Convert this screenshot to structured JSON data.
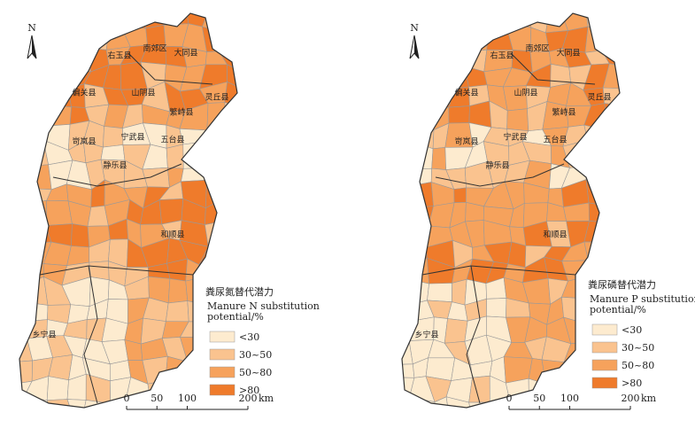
{
  "maps": [
    {
      "north": "N",
      "legend_title": "粪尿氮替代潜力",
      "legend_subtitle_1": "Manure N substitution",
      "legend_subtitle_2": "potential/%",
      "classes": [
        {
          "label": "<30",
          "color": "#fdebcf"
        },
        {
          "label": "30~50",
          "color": "#fac38f"
        },
        {
          "label": "50~80",
          "color": "#f6a25c"
        },
        {
          "label": ">80",
          "color": "#ef7b2b"
        }
      ],
      "counties": [
        "右玉县",
        "南郊区",
        "大同县",
        "偏关县",
        "山阴县",
        "灵丘县",
        "繁峙县",
        "宁武县",
        "岢岚县",
        "五台县",
        "静乐县",
        "和顺县",
        "乡宁县"
      ],
      "scale_ticks": [
        0,
        50,
        100,
        200
      ],
      "scale_unit": "km"
    },
    {
      "north": "N",
      "legend_title": "粪尿磷替代潜力",
      "legend_subtitle_1": "Manure P substitution",
      "legend_subtitle_2": "potential/%",
      "classes": [
        {
          "label": "<30",
          "color": "#fdebcf"
        },
        {
          "label": "30~50",
          "color": "#fac38f"
        },
        {
          "label": "50~80",
          "color": "#f6a25c"
        },
        {
          "label": ">80",
          "color": "#ef7b2b"
        }
      ],
      "counties": [
        "右玉县",
        "南郊区",
        "大同县",
        "偏关县",
        "山阴县",
        "灵丘县",
        "繁峙县",
        "宁武县",
        "岢岚县",
        "五台县",
        "静乐县",
        "和顺县",
        "乡宁县"
      ],
      "scale_ticks": [
        0,
        50,
        100,
        200
      ],
      "scale_unit": "km"
    }
  ]
}
